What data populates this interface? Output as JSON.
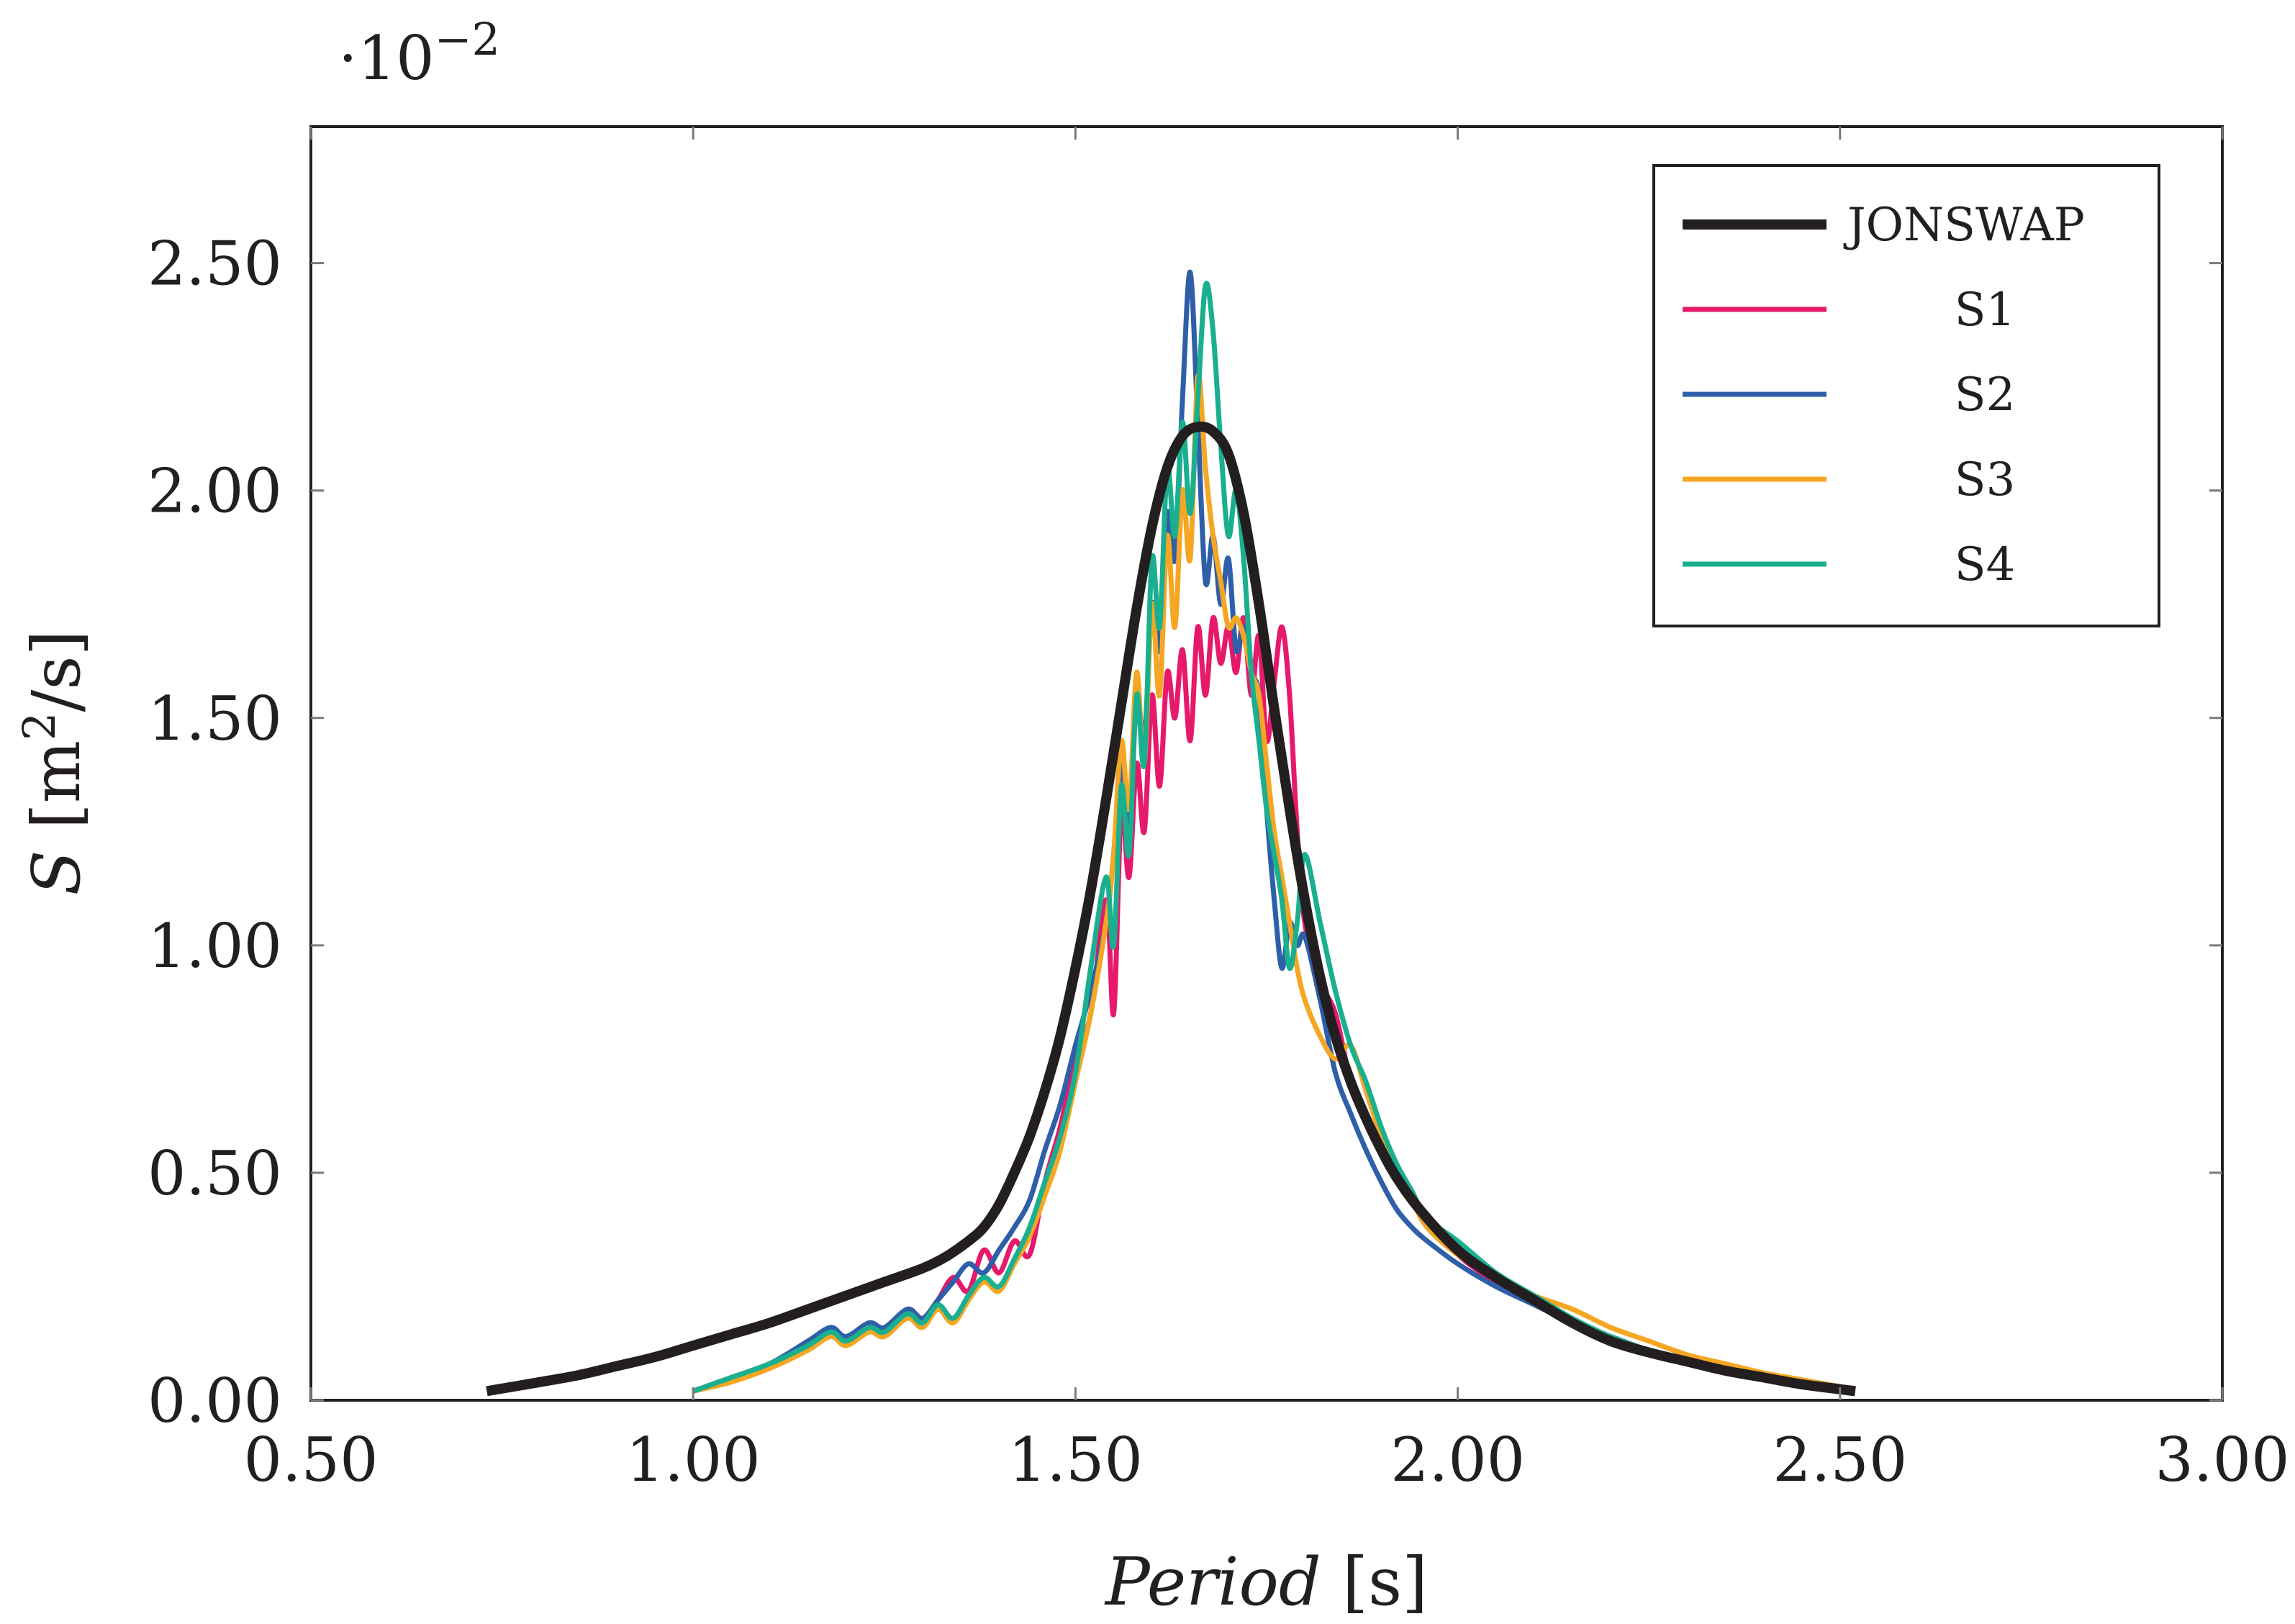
{
  "chart_data": {
    "type": "line",
    "xlabel_italic": "Period",
    "xlabel_unit": "[s]",
    "ylabel_italic": "S",
    "ylabel_unit_pre": "[m",
    "ylabel_unit_sup": "2",
    "ylabel_unit_post": "/s]",
    "y_multiplier_base": "·10",
    "y_multiplier_exp": "−2",
    "xlim": [
      0.5,
      3.0
    ],
    "ylim": [
      0.0,
      2.8
    ],
    "xticks": [
      0.5,
      1.0,
      1.5,
      2.0,
      2.5,
      3.0
    ],
    "xtick_labels": [
      "0.50",
      "1.00",
      "1.50",
      "2.00",
      "2.50",
      "3.00"
    ],
    "yticks": [
      0.0,
      0.5,
      1.0,
      1.5,
      2.0,
      2.5
    ],
    "ytick_labels": [
      "0.00",
      "0.50",
      "1.00",
      "1.50",
      "2.00",
      "2.50"
    ],
    "legend_position": "top-right",
    "grid": false,
    "series": [
      {
        "name": "JONSWAP",
        "color": "#231f20",
        "x": [
          0.73,
          0.8,
          0.85,
          0.9,
          0.95,
          1.0,
          1.05,
          1.1,
          1.15,
          1.2,
          1.25,
          1.3,
          1.33,
          1.36,
          1.38,
          1.4,
          1.42,
          1.44,
          1.46,
          1.48,
          1.5,
          1.52,
          1.54,
          1.56,
          1.58,
          1.6,
          1.62,
          1.64,
          1.66,
          1.68,
          1.7,
          1.72,
          1.74,
          1.76,
          1.78,
          1.8,
          1.82,
          1.84,
          1.86,
          1.88,
          1.9,
          1.92,
          1.95,
          2.0,
          2.05,
          2.1,
          2.15,
          2.2,
          2.25,
          2.3,
          2.35,
          2.4,
          2.45,
          2.52
        ],
        "values": [
          0.02,
          0.04,
          0.055,
          0.075,
          0.095,
          0.12,
          0.145,
          0.17,
          0.2,
          0.23,
          0.26,
          0.29,
          0.315,
          0.35,
          0.38,
          0.43,
          0.5,
          0.58,
          0.68,
          0.8,
          0.95,
          1.12,
          1.32,
          1.53,
          1.74,
          1.92,
          2.05,
          2.12,
          2.14,
          2.13,
          2.08,
          1.95,
          1.75,
          1.52,
          1.3,
          1.1,
          0.93,
          0.8,
          0.7,
          0.62,
          0.55,
          0.49,
          0.42,
          0.33,
          0.27,
          0.22,
          0.17,
          0.13,
          0.105,
          0.085,
          0.065,
          0.05,
          0.035,
          0.02
        ]
      },
      {
        "name": "S1",
        "color": "#e6196b",
        "x": [
          1.0,
          1.05,
          1.1,
          1.15,
          1.18,
          1.2,
          1.23,
          1.25,
          1.28,
          1.3,
          1.32,
          1.34,
          1.36,
          1.38,
          1.4,
          1.42,
          1.44,
          1.46,
          1.48,
          1.5,
          1.52,
          1.54,
          1.55,
          1.56,
          1.57,
          1.58,
          1.59,
          1.6,
          1.61,
          1.62,
          1.63,
          1.64,
          1.65,
          1.66,
          1.67,
          1.68,
          1.69,
          1.7,
          1.71,
          1.72,
          1.73,
          1.74,
          1.75,
          1.76,
          1.77,
          1.78,
          1.79,
          1.8,
          1.82,
          1.84,
          1.86,
          1.88,
          1.9,
          1.92,
          1.94,
          1.96,
          2.0,
          2.05,
          2.1,
          2.15,
          2.2,
          2.25,
          2.3,
          2.35,
          2.4,
          2.45,
          2.5
        ],
        "values": [
          0.02,
          0.05,
          0.08,
          0.12,
          0.15,
          0.13,
          0.17,
          0.15,
          0.2,
          0.18,
          0.22,
          0.27,
          0.24,
          0.33,
          0.28,
          0.35,
          0.32,
          0.48,
          0.6,
          0.75,
          0.85,
          1.1,
          0.85,
          1.3,
          1.15,
          1.4,
          1.25,
          1.55,
          1.35,
          1.6,
          1.5,
          1.65,
          1.45,
          1.7,
          1.55,
          1.72,
          1.62,
          1.7,
          1.6,
          1.72,
          1.55,
          1.68,
          1.45,
          1.58,
          1.7,
          1.55,
          1.25,
          1.05,
          0.92,
          0.85,
          0.7,
          0.62,
          0.55,
          0.5,
          0.45,
          0.4,
          0.32,
          0.26,
          0.22,
          0.17,
          0.14,
          0.11,
          0.09,
          0.07,
          0.05,
          0.04,
          0.03
        ]
      },
      {
        "name": "S2",
        "color": "#2e5fa8",
        "x": [
          1.0,
          1.05,
          1.1,
          1.15,
          1.18,
          1.2,
          1.23,
          1.25,
          1.28,
          1.3,
          1.32,
          1.34,
          1.36,
          1.38,
          1.4,
          1.42,
          1.44,
          1.46,
          1.48,
          1.5,
          1.52,
          1.54,
          1.55,
          1.56,
          1.57,
          1.58,
          1.59,
          1.6,
          1.61,
          1.62,
          1.63,
          1.64,
          1.65,
          1.66,
          1.67,
          1.68,
          1.69,
          1.7,
          1.71,
          1.72,
          1.73,
          1.74,
          1.75,
          1.76,
          1.77,
          1.78,
          1.79,
          1.8,
          1.82,
          1.84,
          1.86,
          1.88,
          1.9,
          1.92,
          1.94,
          1.96,
          2.0,
          2.05,
          2.1,
          2.15,
          2.2,
          2.25,
          2.3,
          2.35,
          2.4,
          2.45,
          2.5
        ],
        "values": [
          0.02,
          0.05,
          0.08,
          0.13,
          0.16,
          0.14,
          0.17,
          0.16,
          0.2,
          0.18,
          0.22,
          0.26,
          0.3,
          0.28,
          0.33,
          0.38,
          0.44,
          0.55,
          0.65,
          0.78,
          0.9,
          1.05,
          1.2,
          1.4,
          1.25,
          1.55,
          1.45,
          1.75,
          1.65,
          1.95,
          1.85,
          2.2,
          2.48,
          2.15,
          1.8,
          1.9,
          1.75,
          1.85,
          1.65,
          1.7,
          1.6,
          1.55,
          1.3,
          1.1,
          0.95,
          1.05,
          1.0,
          1.02,
          0.88,
          0.72,
          0.63,
          0.55,
          0.48,
          0.42,
          0.38,
          0.35,
          0.3,
          0.25,
          0.21,
          0.17,
          0.14,
          0.11,
          0.09,
          0.07,
          0.05,
          0.04,
          0.03
        ]
      },
      {
        "name": "S3",
        "color": "#f5a623",
        "x": [
          1.0,
          1.05,
          1.1,
          1.15,
          1.18,
          1.2,
          1.23,
          1.25,
          1.28,
          1.3,
          1.32,
          1.34,
          1.36,
          1.38,
          1.4,
          1.42,
          1.44,
          1.46,
          1.48,
          1.5,
          1.52,
          1.54,
          1.55,
          1.56,
          1.57,
          1.58,
          1.59,
          1.6,
          1.61,
          1.62,
          1.63,
          1.64,
          1.65,
          1.66,
          1.67,
          1.68,
          1.69,
          1.7,
          1.71,
          1.72,
          1.73,
          1.74,
          1.75,
          1.76,
          1.77,
          1.78,
          1.79,
          1.8,
          1.82,
          1.84,
          1.86,
          1.88,
          1.9,
          1.92,
          1.94,
          1.96,
          2.0,
          2.05,
          2.1,
          2.15,
          2.2,
          2.25,
          2.3,
          2.35,
          2.4,
          2.45,
          2.5
        ],
        "values": [
          0.02,
          0.04,
          0.07,
          0.11,
          0.14,
          0.12,
          0.15,
          0.14,
          0.18,
          0.16,
          0.2,
          0.17,
          0.22,
          0.26,
          0.24,
          0.3,
          0.36,
          0.45,
          0.55,
          0.7,
          0.85,
          1.05,
          1.2,
          1.45,
          1.3,
          1.6,
          1.4,
          1.75,
          1.55,
          1.9,
          1.7,
          2.0,
          1.85,
          2.25,
          2.05,
          1.9,
          1.8,
          1.7,
          1.72,
          1.68,
          1.6,
          1.55,
          1.4,
          1.25,
          1.15,
          1.05,
          0.95,
          0.88,
          0.8,
          0.75,
          0.78,
          0.68,
          0.58,
          0.5,
          0.44,
          0.38,
          0.32,
          0.27,
          0.23,
          0.2,
          0.16,
          0.13,
          0.1,
          0.08,
          0.06,
          0.045,
          0.03
        ]
      },
      {
        "name": "S4",
        "color": "#1aaf8f",
        "x": [
          1.0,
          1.05,
          1.1,
          1.15,
          1.18,
          1.2,
          1.23,
          1.25,
          1.28,
          1.3,
          1.32,
          1.34,
          1.36,
          1.38,
          1.4,
          1.42,
          1.44,
          1.46,
          1.48,
          1.5,
          1.52,
          1.54,
          1.55,
          1.56,
          1.57,
          1.58,
          1.59,
          1.6,
          1.61,
          1.62,
          1.63,
          1.64,
          1.65,
          1.66,
          1.67,
          1.68,
          1.69,
          1.7,
          1.71,
          1.72,
          1.73,
          1.74,
          1.75,
          1.76,
          1.77,
          1.78,
          1.79,
          1.8,
          1.82,
          1.84,
          1.86,
          1.88,
          1.9,
          1.92,
          1.94,
          1.96,
          2.0,
          2.05,
          2.1,
          2.15,
          2.2,
          2.25,
          2.3,
          2.35,
          2.4,
          2.45,
          2.5
        ],
        "values": [
          0.02,
          0.05,
          0.08,
          0.12,
          0.15,
          0.13,
          0.16,
          0.15,
          0.19,
          0.17,
          0.21,
          0.18,
          0.23,
          0.27,
          0.25,
          0.31,
          0.38,
          0.48,
          0.58,
          0.72,
          0.95,
          1.15,
          1.0,
          1.35,
          1.2,
          1.55,
          1.4,
          1.85,
          1.7,
          2.05,
          1.9,
          2.15,
          1.95,
          2.2,
          2.45,
          2.35,
          2.1,
          1.9,
          2.0,
          1.85,
          1.6,
          1.45,
          1.3,
          1.2,
          1.1,
          0.95,
          1.05,
          1.2,
          1.05,
          0.9,
          0.78,
          0.7,
          0.6,
          0.52,
          0.46,
          0.4,
          0.35,
          0.28,
          0.23,
          0.18,
          0.14,
          0.11,
          0.09,
          0.07,
          0.05,
          0.04,
          0.03
        ]
      }
    ]
  }
}
